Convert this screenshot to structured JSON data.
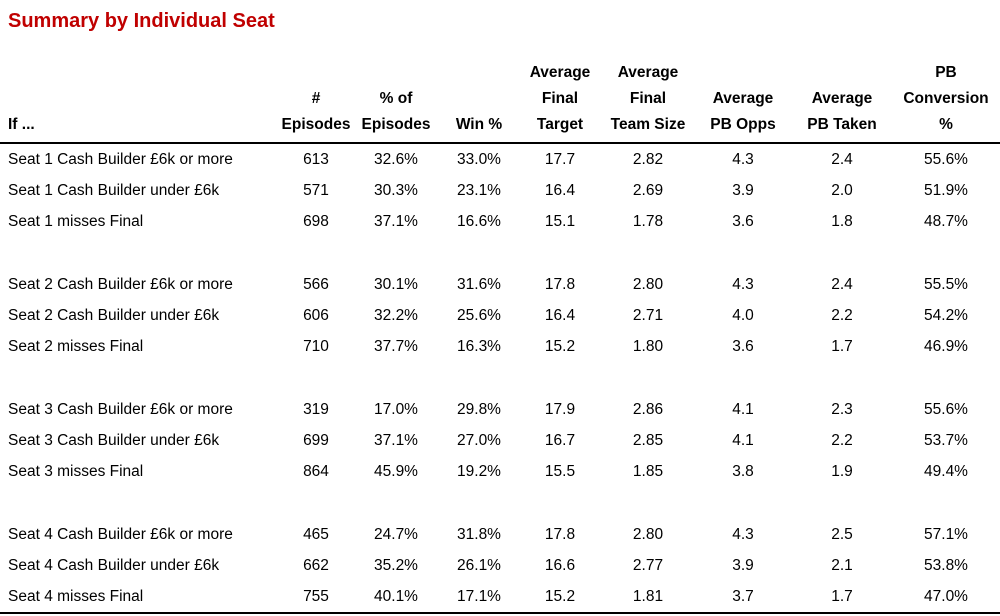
{
  "page": {
    "title": "Summary by Individual Seat"
  },
  "colors": {
    "title": "#C00000",
    "text": "#000000",
    "rule": "#000000",
    "background": "#FFFFFF"
  },
  "table": {
    "columns": [
      {
        "id": "condition",
        "lines": [
          "If ..."
        ]
      },
      {
        "id": "episodes",
        "lines": [
          "#",
          "Episodes"
        ]
      },
      {
        "id": "pct-of-episodes",
        "lines": [
          "% of",
          "Episodes"
        ]
      },
      {
        "id": "win-pct",
        "lines": [
          "Win %"
        ]
      },
      {
        "id": "avg-final-target",
        "lines": [
          "Average",
          "Final",
          "Target"
        ]
      },
      {
        "id": "avg-final-team-size",
        "lines": [
          "Average",
          "Final",
          "Team Size"
        ]
      },
      {
        "id": "avg-pb-opps",
        "lines": [
          "Average",
          "PB Opps"
        ]
      },
      {
        "id": "avg-pb-taken",
        "lines": [
          "Average",
          "PB Taken"
        ]
      },
      {
        "id": "pb-conversion-pct",
        "lines": [
          "PB",
          "Conversion",
          "%"
        ]
      }
    ],
    "groups": [
      {
        "name": "Seat 1",
        "rows": [
          {
            "label": "Seat 1 Cash Builder £6k or more",
            "values": [
              "613",
              "32.6%",
              "33.0%",
              "17.7",
              "2.82",
              "4.3",
              "2.4",
              "55.6%"
            ]
          },
          {
            "label": "Seat 1 Cash Builder under £6k",
            "values": [
              "571",
              "30.3%",
              "23.1%",
              "16.4",
              "2.69",
              "3.9",
              "2.0",
              "51.9%"
            ]
          },
          {
            "label": "Seat 1 misses Final",
            "values": [
              "698",
              "37.1%",
              "16.6%",
              "15.1",
              "1.78",
              "3.6",
              "1.8",
              "48.7%"
            ]
          }
        ]
      },
      {
        "name": "Seat 2",
        "rows": [
          {
            "label": "Seat 2 Cash Builder £6k or more",
            "values": [
              "566",
              "30.1%",
              "31.6%",
              "17.8",
              "2.80",
              "4.3",
              "2.4",
              "55.5%"
            ]
          },
          {
            "label": "Seat 2 Cash Builder under £6k",
            "values": [
              "606",
              "32.2%",
              "25.6%",
              "16.4",
              "2.71",
              "4.0",
              "2.2",
              "54.2%"
            ]
          },
          {
            "label": "Seat 2 misses Final",
            "values": [
              "710",
              "37.7%",
              "16.3%",
              "15.2",
              "1.80",
              "3.6",
              "1.7",
              "46.9%"
            ]
          }
        ]
      },
      {
        "name": "Seat 3",
        "rows": [
          {
            "label": "Seat 3 Cash Builder £6k or more",
            "values": [
              "319",
              "17.0%",
              "29.8%",
              "17.9",
              "2.86",
              "4.1",
              "2.3",
              "55.6%"
            ]
          },
          {
            "label": "Seat 3 Cash Builder under £6k",
            "values": [
              "699",
              "37.1%",
              "27.0%",
              "16.7",
              "2.85",
              "4.1",
              "2.2",
              "53.7%"
            ]
          },
          {
            "label": "Seat 3 misses Final",
            "values": [
              "864",
              "45.9%",
              "19.2%",
              "15.5",
              "1.85",
              "3.8",
              "1.9",
              "49.4%"
            ]
          }
        ]
      },
      {
        "name": "Seat 4",
        "rows": [
          {
            "label": "Seat 4 Cash Builder £6k or more",
            "values": [
              "465",
              "24.7%",
              "31.8%",
              "17.8",
              "2.80",
              "4.3",
              "2.5",
              "57.1%"
            ]
          },
          {
            "label": "Seat 4 Cash Builder under £6k",
            "values": [
              "662",
              "35.2%",
              "26.1%",
              "16.6",
              "2.77",
              "3.9",
              "2.1",
              "53.8%"
            ]
          },
          {
            "label": "Seat 4 misses Final",
            "values": [
              "755",
              "40.1%",
              "17.1%",
              "15.2",
              "1.81",
              "3.7",
              "1.7",
              "47.0%"
            ]
          }
        ]
      }
    ]
  },
  "chart_data": {
    "type": "table",
    "title": "Summary by Individual Seat",
    "columns": [
      "If ...",
      "# Episodes",
      "% of Episodes",
      "Win %",
      "Average Final Target",
      "Average Final Team Size",
      "Average PB Opps",
      "Average PB Taken",
      "PB Conversion %"
    ],
    "rows": [
      [
        "Seat 1 Cash Builder £6k or more",
        613,
        "32.6%",
        "33.0%",
        17.7,
        2.82,
        4.3,
        2.4,
        "55.6%"
      ],
      [
        "Seat 1 Cash Builder under £6k",
        571,
        "30.3%",
        "23.1%",
        16.4,
        2.69,
        3.9,
        2.0,
        "51.9%"
      ],
      [
        "Seat 1 misses Final",
        698,
        "37.1%",
        "16.6%",
        15.1,
        1.78,
        3.6,
        1.8,
        "48.7%"
      ],
      [
        "Seat 2 Cash Builder £6k or more",
        566,
        "30.1%",
        "31.6%",
        17.8,
        2.8,
        4.3,
        2.4,
        "55.5%"
      ],
      [
        "Seat 2 Cash Builder under £6k",
        606,
        "32.2%",
        "25.6%",
        16.4,
        2.71,
        4.0,
        2.2,
        "54.2%"
      ],
      [
        "Seat 2 misses Final",
        710,
        "37.7%",
        "16.3%",
        15.2,
        1.8,
        3.6,
        1.7,
        "46.9%"
      ],
      [
        "Seat 3 Cash Builder £6k or more",
        319,
        "17.0%",
        "29.8%",
        17.9,
        2.86,
        4.1,
        2.3,
        "55.6%"
      ],
      [
        "Seat 3 Cash Builder under £6k",
        699,
        "37.1%",
        "27.0%",
        16.7,
        2.85,
        4.1,
        2.2,
        "53.7%"
      ],
      [
        "Seat 3 misses Final",
        864,
        "45.9%",
        "19.2%",
        15.5,
        1.85,
        3.8,
        1.9,
        "49.4%"
      ],
      [
        "Seat 4 Cash Builder £6k or more",
        465,
        "24.7%",
        "31.8%",
        17.8,
        2.8,
        4.3,
        2.5,
        "57.1%"
      ],
      [
        "Seat 4 Cash Builder under £6k",
        662,
        "35.2%",
        "26.1%",
        16.6,
        2.77,
        3.9,
        2.1,
        "53.8%"
      ],
      [
        "Seat 4 misses Final",
        755,
        "40.1%",
        "17.1%",
        15.2,
        1.81,
        3.7,
        1.7,
        "47.0%"
      ]
    ]
  }
}
